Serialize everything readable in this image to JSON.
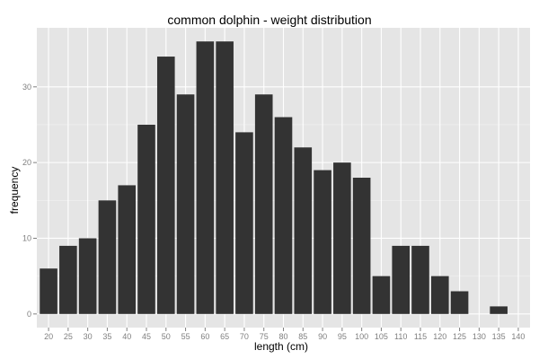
{
  "chart_data": {
    "type": "bar",
    "title": "common dolphin - weight distribution",
    "xlabel": "length (cm)",
    "ylabel": "frequency",
    "categories": [
      "20",
      "25",
      "30",
      "35",
      "40",
      "45",
      "50",
      "55",
      "60",
      "65",
      "70",
      "75",
      "80",
      "85",
      "90",
      "95",
      "100",
      "105",
      "110",
      "115",
      "120",
      "125",
      "130",
      "135",
      "140"
    ],
    "values": [
      6,
      9,
      10,
      15,
      17,
      25,
      34,
      29,
      36,
      36,
      24,
      29,
      26,
      22,
      19,
      20,
      18,
      5,
      9,
      9,
      5,
      3,
      0,
      1,
      0
    ],
    "yticks": [
      0,
      10,
      20,
      30
    ],
    "ylim": [
      -1.8,
      37.8
    ],
    "grid": true,
    "colors": {
      "panel_bg": "#e5e5e5",
      "grid_major": "#ffffff",
      "grid_minor": "#f2f2f2",
      "bar_fill": "#333333",
      "tick_text": "#7f7f7f"
    }
  }
}
